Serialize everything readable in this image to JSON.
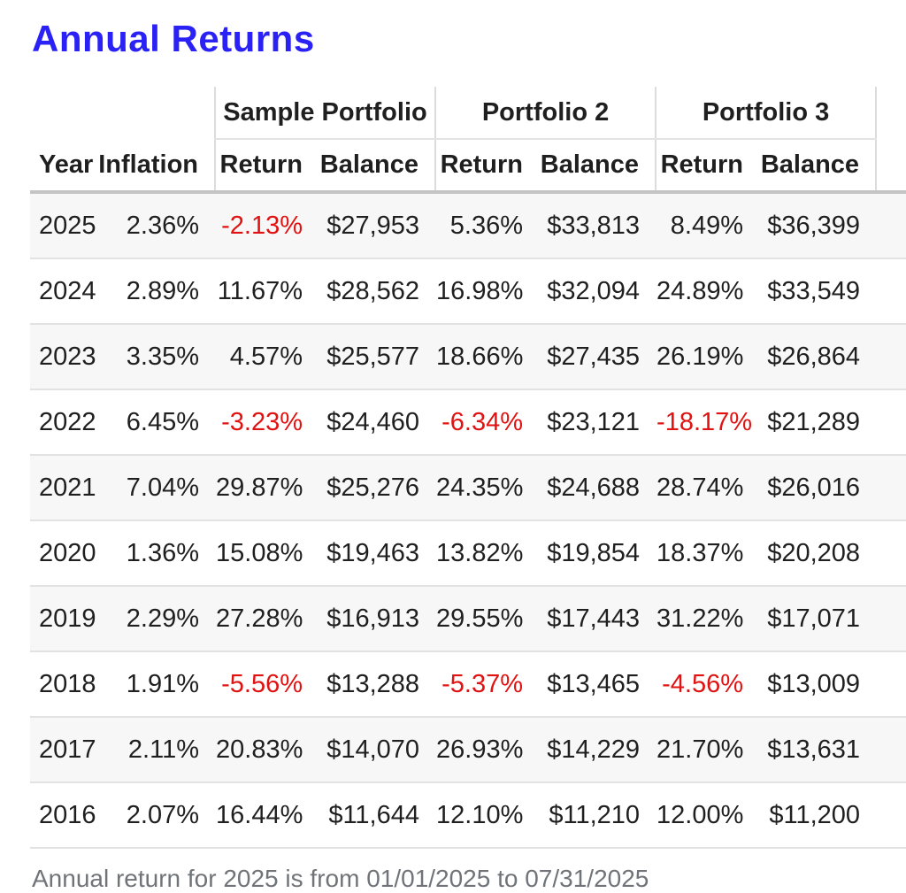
{
  "page": {
    "title": "Annual Returns",
    "footnote": "Annual return for 2025 is from 01/01/2025 to 07/31/2025"
  },
  "colors": {
    "title_blue": "#2a21f5",
    "negative_red": "#e01212",
    "stripe_gray": "#f7f7f7",
    "divider_gray": "#e2e2e2",
    "header_border_gray": "#c4c4c4",
    "footnote_gray": "#707479"
  },
  "chart_data": {
    "type": "table",
    "title": "Annual Returns",
    "group_columns": [
      "Sample Portfolio",
      "Portfolio 2",
      "Portfolio 3"
    ],
    "sub_columns": {
      "year_label": "Year",
      "inflation_label": "Inflation",
      "return_label": "Return",
      "balance_label": "Balance"
    },
    "rows": [
      {
        "year": "2025",
        "inflation": "2.36%",
        "p1_return": "-2.13%",
        "p1_balance": "$27,953",
        "p2_return": "5.36%",
        "p2_balance": "$33,813",
        "p3_return": "8.49%",
        "p3_balance": "$36,399"
      },
      {
        "year": "2024",
        "inflation": "2.89%",
        "p1_return": "11.67%",
        "p1_balance": "$28,562",
        "p2_return": "16.98%",
        "p2_balance": "$32,094",
        "p3_return": "24.89%",
        "p3_balance": "$33,549"
      },
      {
        "year": "2023",
        "inflation": "3.35%",
        "p1_return": "4.57%",
        "p1_balance": "$25,577",
        "p2_return": "18.66%",
        "p2_balance": "$27,435",
        "p3_return": "26.19%",
        "p3_balance": "$26,864"
      },
      {
        "year": "2022",
        "inflation": "6.45%",
        "p1_return": "-3.23%",
        "p1_balance": "$24,460",
        "p2_return": "-6.34%",
        "p2_balance": "$23,121",
        "p3_return": "-18.17%",
        "p3_balance": "$21,289"
      },
      {
        "year": "2021",
        "inflation": "7.04%",
        "p1_return": "29.87%",
        "p1_balance": "$25,276",
        "p2_return": "24.35%",
        "p2_balance": "$24,688",
        "p3_return": "28.74%",
        "p3_balance": "$26,016"
      },
      {
        "year": "2020",
        "inflation": "1.36%",
        "p1_return": "15.08%",
        "p1_balance": "$19,463",
        "p2_return": "13.82%",
        "p2_balance": "$19,854",
        "p3_return": "18.37%",
        "p3_balance": "$20,208"
      },
      {
        "year": "2019",
        "inflation": "2.29%",
        "p1_return": "27.28%",
        "p1_balance": "$16,913",
        "p2_return": "29.55%",
        "p2_balance": "$17,443",
        "p3_return": "31.22%",
        "p3_balance": "$17,071"
      },
      {
        "year": "2018",
        "inflation": "1.91%",
        "p1_return": "-5.56%",
        "p1_balance": "$13,288",
        "p2_return": "-5.37%",
        "p2_balance": "$13,465",
        "p3_return": "-4.56%",
        "p3_balance": "$13,009"
      },
      {
        "year": "2017",
        "inflation": "2.11%",
        "p1_return": "20.83%",
        "p1_balance": "$14,070",
        "p2_return": "26.93%",
        "p2_balance": "$14,229",
        "p3_return": "21.70%",
        "p3_balance": "$13,631"
      },
      {
        "year": "2016",
        "inflation": "2.07%",
        "p1_return": "16.44%",
        "p1_balance": "$11,644",
        "p2_return": "12.10%",
        "p2_balance": "$11,210",
        "p3_return": "12.00%",
        "p3_balance": "$11,200"
      }
    ],
    "footnote": "Annual return for 2025 is from 01/01/2025 to 07/31/2025"
  }
}
